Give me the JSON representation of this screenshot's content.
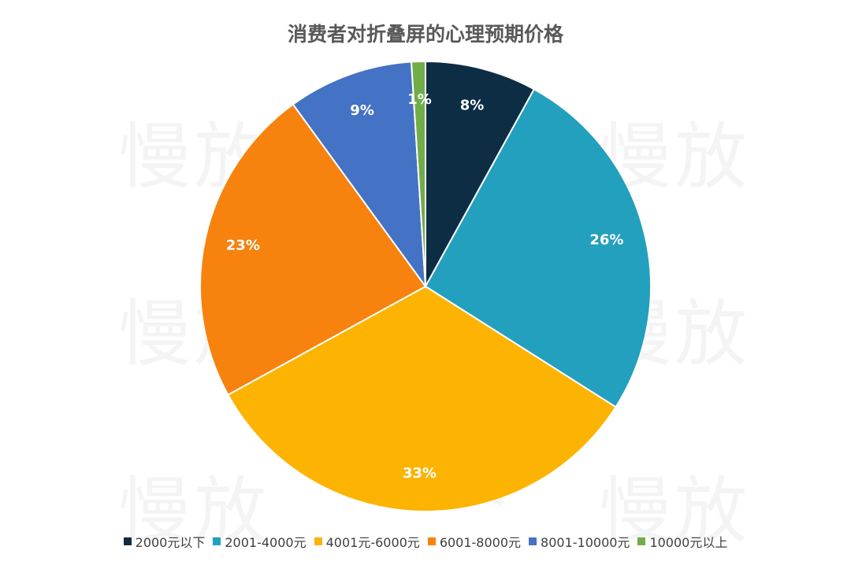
{
  "watermark_text": "慢放",
  "chart_data": {
    "type": "pie",
    "title": "消费者对折叠屏的心理预期价格",
    "categories": [
      "2000元以下",
      "2001-4000元",
      "4001元-6000元",
      "6001-8000元",
      "8001-10000元",
      "10000元以上"
    ],
    "values": [
      8,
      26,
      33,
      23,
      9,
      1
    ],
    "labels": [
      "8%",
      "26%",
      "33%",
      "23%",
      "9%",
      "1%"
    ],
    "colors": [
      "#0d2d45",
      "#22a0be",
      "#fdb301",
      "#f7820e",
      "#4472c4",
      "#70ad47"
    ],
    "legend_position": "bottom",
    "start": "12 o'clock, clockwise"
  }
}
